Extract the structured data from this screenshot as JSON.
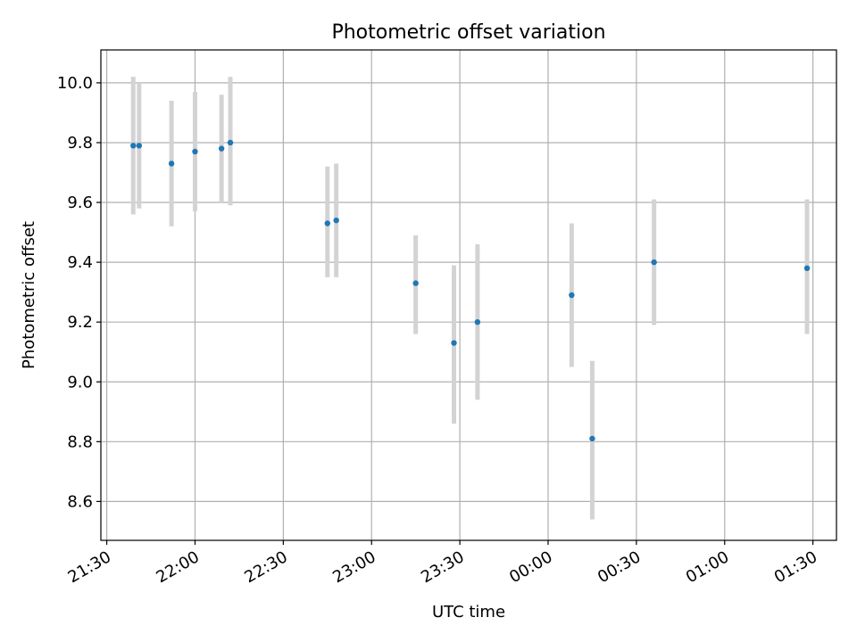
{
  "chart_data": {
    "type": "scatter",
    "title": "Photometric offset variation",
    "xlabel": "UTC time",
    "ylabel": "Photometric offset",
    "x_ticks": [
      "21:30",
      "22:00",
      "22:30",
      "23:00",
      "23:30",
      "00:00",
      "00:30",
      "01:00",
      "01:30"
    ],
    "y_ticks": [
      "8.6",
      "8.8",
      "9.0",
      "9.2",
      "9.4",
      "9.6",
      "9.8",
      "10.0"
    ],
    "xlim": [
      "21:28",
      "01:38"
    ],
    "ylim": [
      8.47,
      10.11
    ],
    "grid": true,
    "colors": {
      "points": "#1f77b4",
      "errorbars": "#d3d3d3",
      "grid": "#b0b0b0"
    },
    "series": [
      {
        "points": [
          {
            "x": "21:39",
            "y": 9.79,
            "lo": 9.56,
            "hi": 10.02
          },
          {
            "x": "21:41",
            "y": 9.79,
            "lo": 9.58,
            "hi": 10.0
          },
          {
            "x": "21:52",
            "y": 9.73,
            "lo": 9.52,
            "hi": 9.94
          },
          {
            "x": "22:00",
            "y": 9.77,
            "lo": 9.57,
            "hi": 9.97
          },
          {
            "x": "22:09",
            "y": 9.78,
            "lo": 9.6,
            "hi": 9.96
          },
          {
            "x": "22:12",
            "y": 9.8,
            "lo": 9.59,
            "hi": 10.02
          },
          {
            "x": "22:45",
            "y": 9.53,
            "lo": 9.35,
            "hi": 9.72
          },
          {
            "x": "22:48",
            "y": 9.54,
            "lo": 9.35,
            "hi": 9.73
          },
          {
            "x": "23:15",
            "y": 9.33,
            "lo": 9.16,
            "hi": 9.49
          },
          {
            "x": "23:28",
            "y": 9.13,
            "lo": 8.86,
            "hi": 9.39
          },
          {
            "x": "23:36",
            "y": 9.2,
            "lo": 8.94,
            "hi": 9.46
          },
          {
            "x": "00:08",
            "y": 9.29,
            "lo": 9.05,
            "hi": 9.53
          },
          {
            "x": "00:15",
            "y": 8.81,
            "lo": 8.54,
            "hi": 9.07
          },
          {
            "x": "00:36",
            "y": 9.4,
            "lo": 9.19,
            "hi": 9.61
          },
          {
            "x": "01:28",
            "y": 9.38,
            "lo": 9.16,
            "hi": 9.61
          }
        ]
      }
    ]
  }
}
